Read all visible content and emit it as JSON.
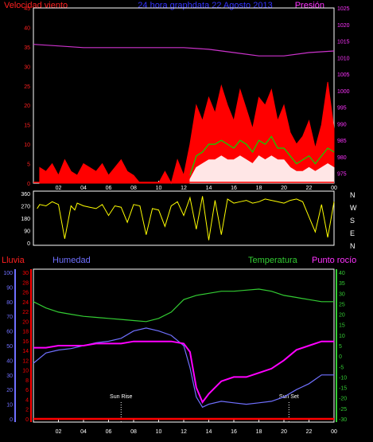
{
  "header": {
    "left": "Velocidad viento",
    "center": "24 hora graphdata  22 Agosto 2013",
    "right": "Presión"
  },
  "colors": {
    "background": "#000000",
    "frame": "#ffffff",
    "wind_axis": "#ff2020",
    "pressure": "#cc33cc",
    "pressure_axis": "#ff33ff",
    "gust": "#ff0000",
    "avg_wind": "#00dd00",
    "min_wind": "#ffffff",
    "direction": "#ffff00",
    "humidity": "#7070ff",
    "temperature": "#33cc33",
    "dewpoint": "#ff00ff",
    "rain": "#ff0000",
    "title": "#3333ff"
  },
  "labels": {
    "rain": "Lluvia",
    "humidity": "Humedad",
    "temperature": "Temperatura",
    "dewpoint": "Punto rocío",
    "sunrise": "Sun Rise",
    "sunset": "Sun Set",
    "compass": [
      "N",
      "W",
      "S",
      "E",
      "N"
    ]
  },
  "chart_data": [
    {
      "type": "line",
      "panel": "wind_pressure",
      "x_ticks": [
        "02",
        "04",
        "06",
        "08",
        "10",
        "12",
        "14",
        "16",
        "18",
        "20",
        "22",
        "00"
      ],
      "left_axis": {
        "label": "Velocidad viento",
        "ticks": [
          0,
          5,
          10,
          15,
          20,
          25,
          30,
          35,
          40,
          45
        ],
        "ylim": [
          0,
          45
        ]
      },
      "right_axis": {
        "label": "Presión",
        "ticks": [
          975,
          980,
          985,
          990,
          995,
          1000,
          1005,
          1010,
          1015,
          1020,
          1025
        ],
        "ylim": [
          972,
          1025
        ]
      },
      "series": [
        {
          "name": "Presión",
          "axis": "right",
          "x": [
            0,
            2,
            4,
            6,
            8,
            10,
            12,
            14,
            16,
            18,
            20,
            22,
            24
          ],
          "values": [
            1014,
            1013.5,
            1013,
            1013,
            1013,
            1013,
            1013,
            1012.5,
            1011.5,
            1010.5,
            1010.5,
            1011.5,
            1012
          ]
        },
        {
          "name": "gust",
          "axis": "left",
          "x": [
            0.5,
            1,
            1.5,
            2,
            2.5,
            3,
            3.5,
            4,
            4.5,
            5,
            5.5,
            6,
            6.5,
            7,
            7.5,
            8,
            8.5,
            9,
            9.5,
            10,
            10.5,
            11,
            11.5,
            12,
            12.5,
            13,
            13.5,
            14,
            14.5,
            15,
            15.5,
            16,
            16.5,
            17,
            17.5,
            18,
            18.5,
            19,
            19.5,
            20,
            20.5,
            21,
            21.5,
            22,
            22.5,
            23,
            23.5,
            24
          ],
          "values": [
            4,
            3,
            5,
            2,
            6,
            3,
            2,
            5,
            4,
            3,
            5,
            2,
            4,
            6,
            3,
            2,
            0,
            0,
            0,
            0,
            3,
            0,
            6,
            2,
            10,
            20,
            16,
            22,
            18,
            25,
            20,
            16,
            24,
            19,
            14,
            22,
            20,
            24,
            16,
            20,
            13,
            10,
            12,
            16,
            9,
            15,
            26,
            14
          ]
        },
        {
          "name": "average",
          "axis": "left",
          "x": [
            12.5,
            13,
            13.5,
            14,
            14.5,
            15,
            15.5,
            16,
            16.5,
            17,
            17.5,
            18,
            18.5,
            19,
            19.5,
            20,
            20.5,
            21,
            21.5,
            22,
            22.5,
            23,
            23.5,
            24
          ],
          "values": [
            2,
            7,
            8,
            10,
            10,
            11,
            10,
            9,
            11,
            10,
            8,
            11,
            10,
            12,
            9,
            9,
            7,
            5,
            6,
            7,
            5,
            7,
            9,
            8
          ]
        },
        {
          "name": "minimum",
          "axis": "left",
          "x": [
            12.5,
            13,
            13.5,
            14,
            14.5,
            15,
            15.5,
            16,
            16.5,
            17,
            17.5,
            18,
            18.5,
            19,
            19.5,
            20,
            20.5,
            21,
            21.5,
            22,
            22.5,
            23,
            23.5,
            24
          ],
          "values": [
            1,
            4,
            5,
            6,
            6,
            7,
            6,
            6,
            7,
            6,
            5,
            7,
            6,
            7,
            6,
            6,
            4,
            3,
            3,
            4,
            3,
            4,
            5,
            4
          ]
        }
      ]
    },
    {
      "type": "line",
      "panel": "wind_direction",
      "left_axis": {
        "ticks": [
          0,
          90,
          180,
          270,
          360
        ],
        "ylim": [
          0,
          360
        ]
      },
      "series": [
        {
          "name": "direction",
          "x": [
            0.3,
            0.5,
            1,
            1.5,
            2,
            2.5,
            3,
            3.3,
            3.5,
            4,
            4.5,
            5,
            5.5,
            6,
            6.5,
            7,
            7.5,
            8,
            8.5,
            9,
            9.5,
            10,
            10.5,
            11,
            11.5,
            12,
            12.5,
            13,
            13.5,
            14,
            14.5,
            15,
            15.5,
            16,
            16.5,
            17,
            17.5,
            18,
            18.5,
            19,
            19.5,
            20,
            20.5,
            21,
            21.5,
            22,
            22.5,
            23,
            23.5,
            24
          ],
          "values": [
            250,
            280,
            270,
            300,
            280,
            30,
            270,
            240,
            290,
            270,
            260,
            250,
            280,
            200,
            270,
            260,
            150,
            280,
            270,
            60,
            250,
            240,
            120,
            270,
            300,
            200,
            330,
            100,
            340,
            20,
            310,
            60,
            320,
            290,
            300,
            310,
            290,
            300,
            320,
            310,
            300,
            290,
            310,
            320,
            300,
            190,
            80,
            280,
            40,
            300
          ]
        }
      ]
    },
    {
      "type": "line",
      "panel": "humidity_temperature",
      "x_ticks": [
        "02",
        "04",
        "06",
        "08",
        "10",
        "12",
        "14",
        "16",
        "18",
        "20",
        "22",
        "00"
      ],
      "rain_axis": {
        "label": "Lluvia",
        "ticks": [
          0,
          2,
          4,
          6,
          8,
          10,
          12,
          14,
          16,
          18,
          20,
          22,
          24,
          26,
          28,
          30
        ],
        "ylim": [
          0,
          30
        ]
      },
      "humidity_axis": {
        "label": "Humedad",
        "ticks": [
          0,
          10,
          20,
          30,
          40,
          50,
          60,
          70,
          80,
          90,
          100
        ],
        "ylim": [
          0,
          100
        ]
      },
      "temperature_axis": {
        "label": "Temperatura / Punto rocío",
        "ticks": [
          -30,
          -25,
          -20,
          -15,
          -10,
          -5,
          0,
          5,
          10,
          15,
          20,
          25,
          30,
          35,
          40
        ],
        "ylim": [
          -30,
          40
        ]
      },
      "sun_rise": 7.0,
      "sun_set": 20.4,
      "series": [
        {
          "name": "Humedad",
          "axis": "humidity",
          "x": [
            0,
            1,
            2,
            3,
            4,
            5,
            6,
            7,
            8,
            9,
            10,
            11,
            12,
            12.5,
            13,
            13.5,
            14,
            15,
            16,
            17,
            18,
            19,
            20,
            21,
            22,
            23,
            24
          ],
          "values": [
            38,
            45,
            47,
            48,
            50,
            52,
            53,
            55,
            60,
            62,
            60,
            57,
            50,
            35,
            15,
            8,
            10,
            12,
            11,
            10,
            11,
            12,
            15,
            20,
            24,
            30,
            30
          ]
        },
        {
          "name": "Temperatura",
          "axis": "temperature",
          "x": [
            0,
            1,
            2,
            3,
            4,
            5,
            6,
            7,
            8,
            9,
            10,
            11,
            12,
            13,
            14,
            15,
            16,
            17,
            18,
            19,
            20,
            21,
            22,
            23,
            24
          ],
          "values": [
            26,
            23,
            21,
            20,
            19,
            18.5,
            18,
            17.5,
            17,
            16.5,
            18,
            21,
            27,
            29,
            30,
            31,
            31,
            31.5,
            32,
            31,
            29,
            28,
            27,
            26,
            26
          ]
        },
        {
          "name": "Punto rocío",
          "axis": "temperature",
          "x": [
            0,
            1,
            2,
            3,
            4,
            5,
            6,
            7,
            8,
            9,
            10,
            11,
            12,
            12.5,
            13,
            13.5,
            14,
            15,
            16,
            17,
            18,
            19,
            20,
            21,
            22,
            23,
            24
          ],
          "values": [
            4,
            4,
            5,
            5,
            5,
            6,
            6,
            6,
            7,
            7,
            7,
            7,
            6,
            2,
            -15,
            -22,
            -18,
            -12,
            -10,
            -10,
            -8,
            -6,
            -2,
            3,
            5,
            7,
            7
          ]
        },
        {
          "name": "Lluvia",
          "axis": "rain",
          "x": [
            0,
            24
          ],
          "values": [
            0,
            0
          ]
        }
      ]
    }
  ]
}
